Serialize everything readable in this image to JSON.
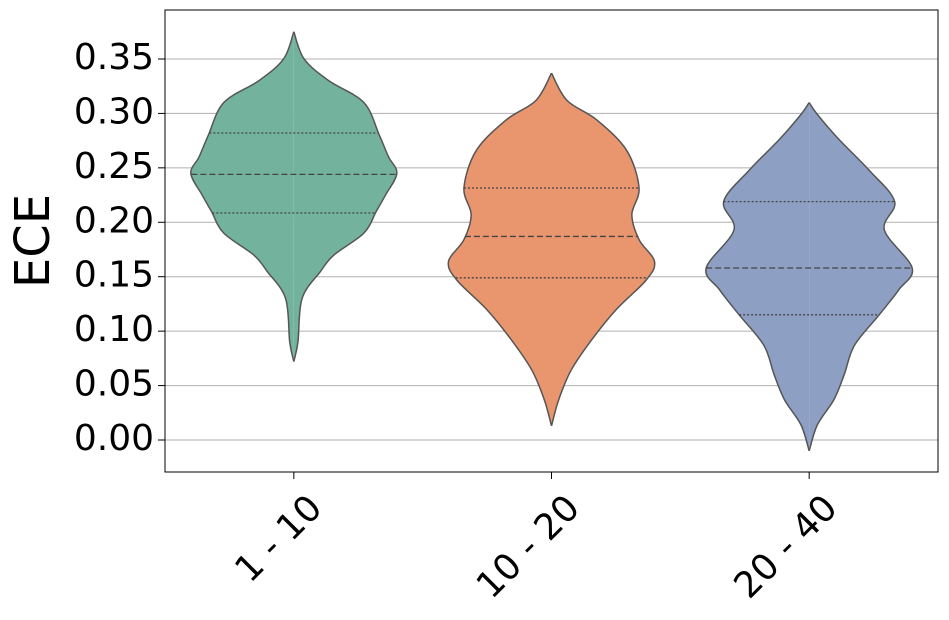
{
  "chart_data": {
    "type": "violin",
    "y_label": "ECE",
    "categories": [
      "1 - 10",
      "10 - 20",
      "20 - 40"
    ],
    "series": [
      {
        "color": "#73b39e",
        "q1": 0.2085,
        "median": 0.244,
        "q3": 0.282,
        "kde_y": [
          0.072,
          0.09,
          0.13,
          0.155,
          0.17,
          0.19,
          0.21,
          0.225,
          0.245,
          0.26,
          0.28,
          0.31,
          0.33,
          0.35,
          0.375
        ],
        "density": [
          0,
          0.04,
          0.08,
          0.26,
          0.39,
          0.68,
          0.8,
          0.89,
          1,
          0.92,
          0.83,
          0.68,
          0.34,
          0.1,
          0
        ]
      },
      {
        "color": "#e9966f",
        "q1": 0.149,
        "median": 0.187,
        "q3": 0.2315,
        "kde_y": [
          0.013,
          0.037,
          0.064,
          0.092,
          0.12,
          0.147,
          0.164,
          0.184,
          0.207,
          0.2315,
          0.266,
          0.294,
          0.312,
          0.337
        ],
        "density": [
          0,
          0.07,
          0.19,
          0.39,
          0.63,
          0.92,
          1,
          0.85,
          0.78,
          0.85,
          0.73,
          0.44,
          0.15,
          0
        ]
      },
      {
        "color": "#8e9fc4",
        "q1": 0.115,
        "median": 0.158,
        "q3": 0.219,
        "kde_y": [
          -0.01,
          0.014,
          0.037,
          0.06,
          0.087,
          0.115,
          0.138,
          0.158,
          0.193,
          0.219,
          0.248,
          0.276,
          0.299,
          0.31
        ],
        "density": [
          0,
          0.08,
          0.24,
          0.34,
          0.44,
          0.68,
          0.87,
          1,
          0.73,
          0.83,
          0.58,
          0.29,
          0.08,
          0
        ]
      }
    ],
    "ylim": [
      -0.0294,
      0.395
    ],
    "yticks": [
      {
        "value": 0,
        "label": "0.00"
      },
      {
        "value": 0.05,
        "label": "0.05"
      },
      {
        "value": 0.1,
        "label": "0.10"
      },
      {
        "value": 0.15,
        "label": "0.15"
      },
      {
        "value": 0.2,
        "label": "0.20"
      },
      {
        "value": 0.25,
        "label": "0.25"
      },
      {
        "value": 0.3,
        "label": "0.30"
      },
      {
        "value": 0.35,
        "label": "0.35"
      }
    ],
    "grid": true
  }
}
